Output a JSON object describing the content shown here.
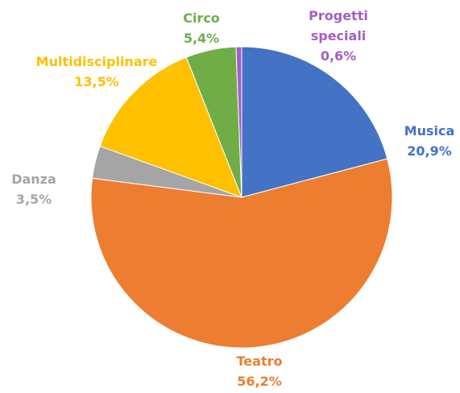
{
  "chart_data": {
    "type": "pie",
    "categories": [
      "Musica",
      "Teatro",
      "Danza",
      "Multidisciplinare",
      "Circo",
      "Progetti speciali"
    ],
    "values": [
      20.9,
      56.2,
      3.5,
      13.5,
      5.4,
      0.6
    ],
    "value_labels": [
      "20,9%",
      "56,2%",
      "3,5%",
      "13,5%",
      "5,4%",
      "0,6%"
    ],
    "colors": [
      "#4472c4",
      "#ed7d31",
      "#a5a5a5",
      "#ffc000",
      "#70ad47",
      "#a35fc4"
    ]
  }
}
